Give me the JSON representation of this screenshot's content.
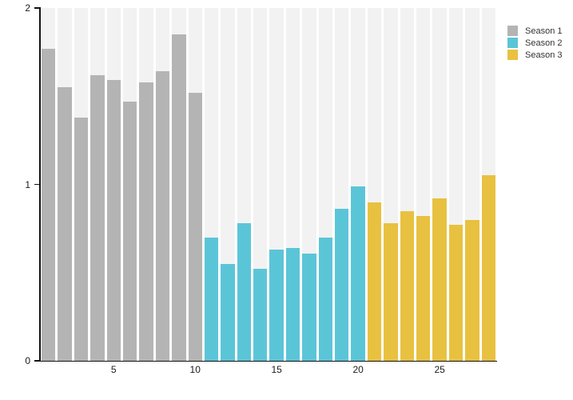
{
  "chart_data": {
    "type": "bar",
    "title": "",
    "xlabel": "",
    "ylabel": "",
    "n_bars": 28,
    "ylim": [
      0,
      2
    ],
    "y_ticks": [
      "0",
      "1",
      "2"
    ],
    "y_tick_values": [
      0,
      1,
      2
    ],
    "x_ticks": [
      "5",
      "10",
      "15",
      "20",
      "25"
    ],
    "x_tick_positions": [
      5,
      10,
      15,
      20,
      25
    ],
    "grid": false,
    "column_background_color": "#f2f2f2",
    "axis_color": "#111111",
    "series": [
      {
        "name": "Season 1",
        "color": "#b4b4b4",
        "x_start": 1,
        "values": [
          1.77,
          1.55,
          1.38,
          1.62,
          1.59,
          1.47,
          1.58,
          1.64,
          1.85,
          1.52
        ]
      },
      {
        "name": "Season 2",
        "color": "#5bc5d8",
        "x_start": 11,
        "values": [
          0.7,
          0.55,
          0.78,
          0.52,
          0.63,
          0.64,
          0.61,
          0.7,
          0.86,
          0.99
        ]
      },
      {
        "name": "Season 3",
        "color": "#e8c140",
        "x_start": 21,
        "values": [
          0.9,
          0.78,
          0.85,
          0.82,
          0.92,
          0.77,
          0.8,
          1.05
        ]
      }
    ],
    "legend": {
      "position": "top-right",
      "entries": [
        "Season 1",
        "Season 2",
        "Season 3"
      ]
    }
  }
}
